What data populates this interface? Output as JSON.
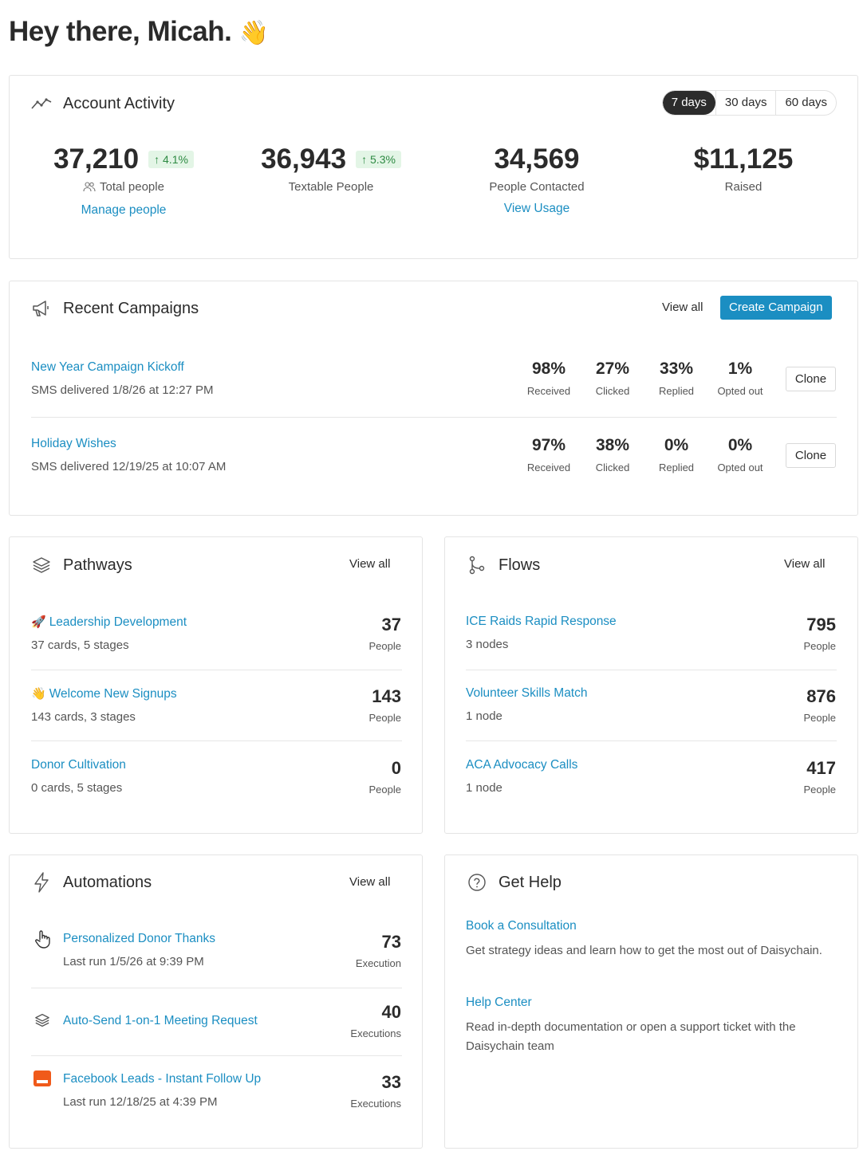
{
  "greeting": "Hey there, Micah.",
  "greeting_emoji": "👋",
  "activity": {
    "title": "Account Activity",
    "ranges": [
      "7 days",
      "30 days",
      "60 days"
    ],
    "active_range": "7 days",
    "stats": [
      {
        "value": "37,210",
        "badge": "↑ 4.1%",
        "label": "Total people",
        "link": "Manage people"
      },
      {
        "value": "36,943",
        "badge": "↑ 5.3%",
        "label": "Textable People"
      },
      {
        "value": "34,569",
        "label": "People Contacted",
        "link": "View Usage"
      },
      {
        "value": "$11,125",
        "label": "Raised"
      }
    ]
  },
  "campaigns": {
    "title": "Recent Campaigns",
    "view_all": "View all",
    "create": "Create Campaign",
    "clone": "Clone",
    "items": [
      {
        "name": "New Year Campaign Kickoff",
        "meta": "SMS delivered 1/8/26 at 12:27 PM",
        "metrics": [
          {
            "v": "98%",
            "l": "Received"
          },
          {
            "v": "27%",
            "l": "Clicked"
          },
          {
            "v": "33%",
            "l": "Replied"
          },
          {
            "v": "1%",
            "l": "Opted out"
          }
        ]
      },
      {
        "name": "Holiday Wishes",
        "meta": "SMS delivered 12/19/25 at 10:07 AM",
        "metrics": [
          {
            "v": "97%",
            "l": "Received"
          },
          {
            "v": "38%",
            "l": "Clicked"
          },
          {
            "v": "0%",
            "l": "Replied"
          },
          {
            "v": "0%",
            "l": "Opted out"
          }
        ]
      }
    ]
  },
  "pathways": {
    "title": "Pathways",
    "view_all": "View all",
    "items": [
      {
        "emoji": "🚀",
        "name": "Leadership Development",
        "meta": "37 cards, 5 stages",
        "count": "37",
        "unit": "People"
      },
      {
        "emoji": "👋",
        "name": "Welcome New Signups",
        "meta": "143 cards, 3 stages",
        "count": "143",
        "unit": "People"
      },
      {
        "emoji": "",
        "name": "Donor Cultivation",
        "meta": "0 cards, 5 stages",
        "count": "0",
        "unit": "People"
      }
    ]
  },
  "flows": {
    "title": "Flows",
    "view_all": "View all",
    "items": [
      {
        "name": "ICE Raids Rapid Response",
        "meta": "3 nodes",
        "count": "795",
        "unit": "People"
      },
      {
        "name": "Volunteer Skills Match",
        "meta": "1 node",
        "count": "876",
        "unit": "People"
      },
      {
        "name": "ACA Advocacy Calls",
        "meta": "1 node",
        "count": "417",
        "unit": "People"
      }
    ]
  },
  "automations": {
    "title": "Automations",
    "view_all": "View all",
    "items": [
      {
        "icon": "pointer-hand-icon",
        "name": "Personalized Donor Thanks",
        "meta": "Last run 1/5/26 at 9:39 PM",
        "count": "73",
        "unit": "Execution"
      },
      {
        "icon": "layers-icon",
        "name": "Auto-Send 1-on-1 Meeting Request",
        "meta": "",
        "count": "40",
        "unit": "Executions"
      },
      {
        "icon": "form-icon",
        "name": "Facebook Leads - Instant Follow Up",
        "meta": "Last run 12/18/25 at 4:39 PM",
        "count": "33",
        "unit": "Executions"
      }
    ]
  },
  "help": {
    "title": "Get Help",
    "items": [
      {
        "name": "Book a Consultation",
        "desc": "Get strategy ideas and learn how to get the most out of Daisychain."
      },
      {
        "name": "Help Center",
        "desc": "Read in-depth documentation or open a support ticket with the Daisychain team"
      }
    ]
  },
  "colors": {
    "accent": "#1b8ec2",
    "badge_bg": "#e3f5e6",
    "badge_text": "#2e8a43",
    "form_icon": "#f05a1a"
  }
}
